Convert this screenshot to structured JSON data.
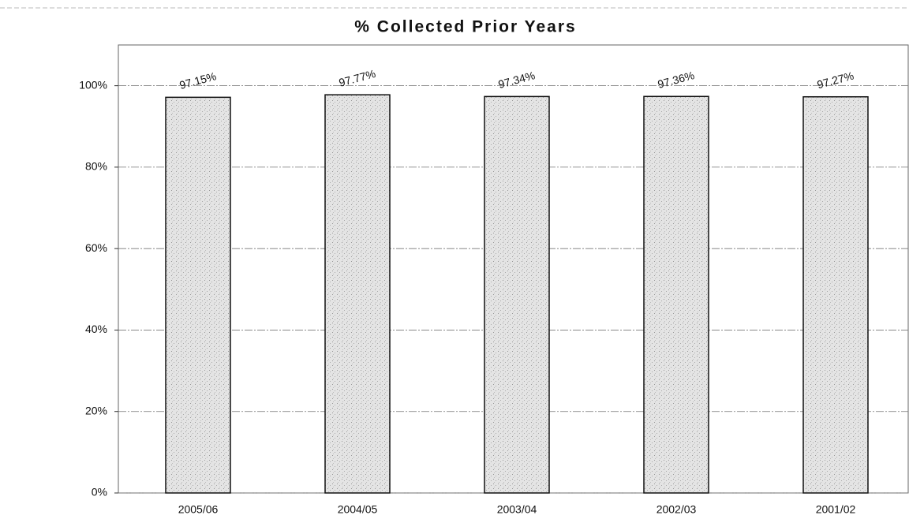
{
  "chart_data": {
    "type": "bar",
    "title": "% Collected Prior Years",
    "categories": [
      "2005/06",
      "2004/05",
      "2003/04",
      "2002/03",
      "2001/02"
    ],
    "values": [
      97.15,
      97.77,
      97.34,
      97.36,
      97.27
    ],
    "value_labels": [
      "97.15%",
      "97.77%",
      "97.34%",
      "97.36%",
      "97.27%"
    ],
    "color": "#d9d9d9",
    "ylim": [
      0,
      110
    ],
    "yticks": [
      {
        "value": 0,
        "label": "0%"
      },
      {
        "value": 20,
        "label": "20%"
      },
      {
        "value": 40,
        "label": "40%"
      },
      {
        "value": 60,
        "label": "60%"
      },
      {
        "value": 80,
        "label": "80%"
      },
      {
        "value": 100,
        "label": "100%"
      }
    ],
    "grid": true
  }
}
